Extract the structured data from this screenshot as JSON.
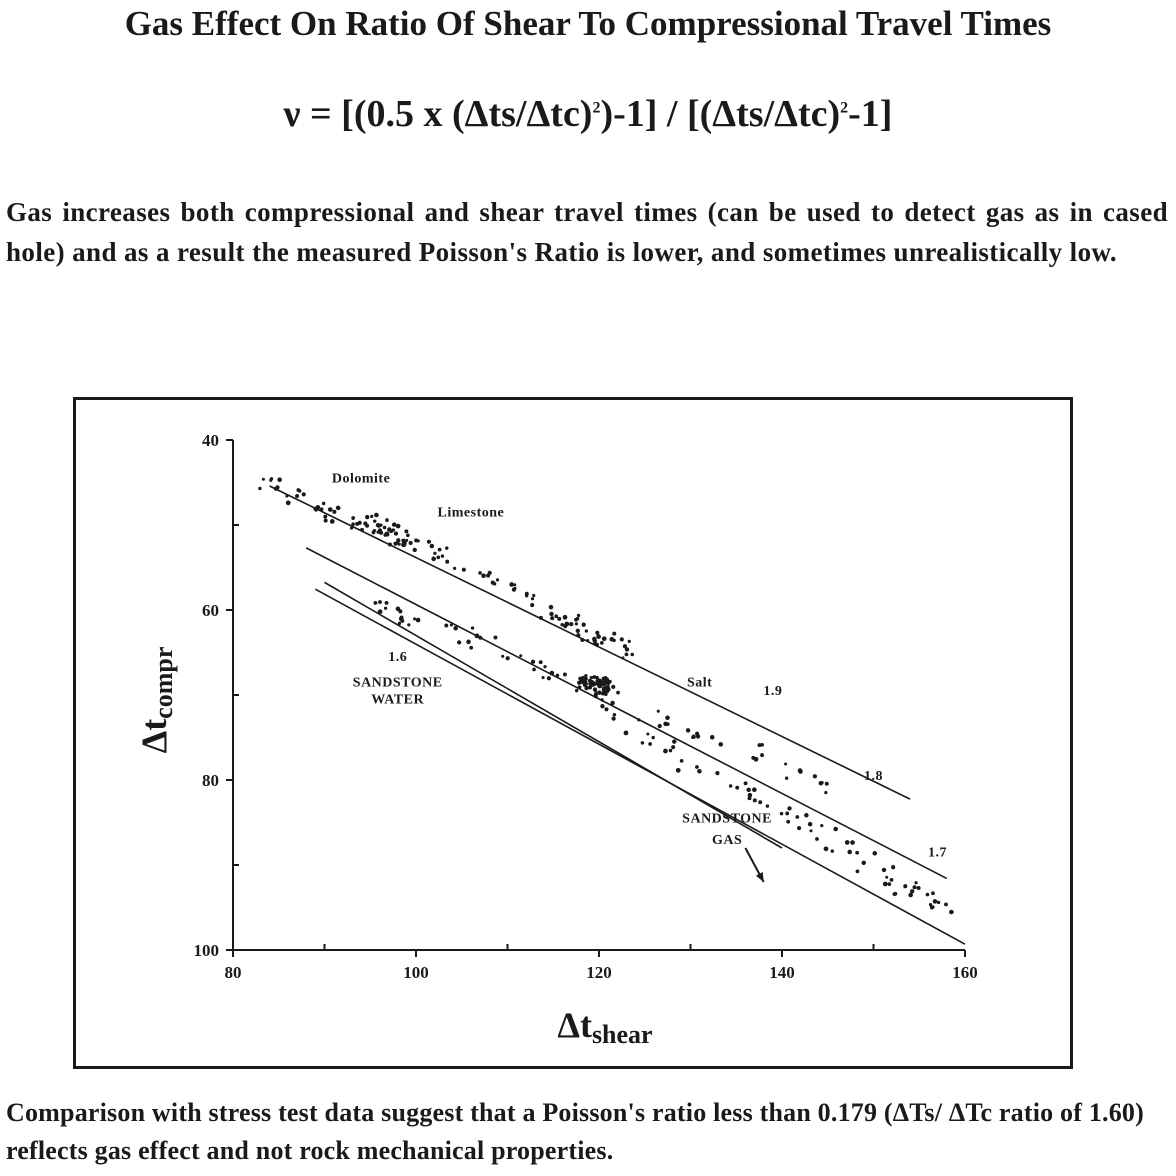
{
  "title": "Gas Effect On Ratio Of Shear To Compressional Travel Times",
  "formula": {
    "part1": "ν = [(0.5 x (Δts/Δtc)",
    "exp1": "2",
    "part2": ")-1] / [(Δts/Δtc)",
    "exp2": "2",
    "part3": "-1]"
  },
  "intro_text": "Gas increases both compressional and shear travel times (can be used to detect gas as in cased hole) and as a result the measured Poisson's Ratio is lower, and sometimes unrealistically low.",
  "footer_text": "Comparison with stress test data suggest that a Poisson's ratio less than 0.179 (ΔTs/ ΔTc ratio of 1.60) reflects gas effect and not rock mechanical properties.",
  "chart_data": {
    "type": "scatter",
    "xlabel_main": "Δt",
    "xlabel_sub": "shear",
    "ylabel_main": "Δt",
    "ylabel_sub": "compr",
    "xlim": [
      80,
      160
    ],
    "ylim": [
      40,
      100
    ],
    "y_inverted": true,
    "x_ticks": [
      80,
      100,
      120,
      140,
      160
    ],
    "y_ticks": [
      40,
      60,
      80,
      100
    ],
    "x_minor_ticks": [
      90,
      110,
      130,
      150
    ],
    "y_minor_ticks": [
      50,
      70,
      90
    ],
    "ratio_lines": [
      {
        "label": "1.9",
        "ratio": 1.9,
        "x_range": [
          84,
          154
        ]
      },
      {
        "label": "1.8",
        "ratio": 1.8,
        "x_range": [
          88,
          158
        ]
      },
      {
        "label": "1.7",
        "ratio": 1.7,
        "x_range": [
          89,
          160
        ]
      },
      {
        "label": "1.6",
        "ratio": 1.6,
        "x_range": [
          90,
          140
        ]
      }
    ],
    "clusters": [
      {
        "name": "Dolomite",
        "points": [
          [
            83,
            45
          ],
          [
            86,
            46
          ],
          [
            89,
            48
          ],
          [
            92,
            49
          ],
          [
            95,
            50
          ],
          [
            97,
            51
          ],
          [
            99,
            52
          ]
        ]
      },
      {
        "name": "Limestone",
        "points": [
          [
            100,
            52
          ],
          [
            104,
            54
          ],
          [
            108,
            56
          ],
          [
            112,
            58
          ],
          [
            116,
            61
          ],
          [
            120,
            63
          ],
          [
            124,
            65
          ]
        ]
      },
      {
        "name": "Salt",
        "points": [
          [
            118,
            68
          ],
          [
            119,
            69
          ],
          [
            120,
            68
          ],
          [
            121,
            69
          ],
          [
            120,
            70
          ]
        ]
      },
      {
        "name": "SANDSTONE WATER",
        "points": [
          [
            96,
            60
          ],
          [
            102,
            62
          ],
          [
            108,
            64
          ],
          [
            114,
            67
          ],
          [
            120,
            70
          ],
          [
            130,
            74
          ],
          [
            138,
            77
          ],
          [
            146,
            81
          ]
        ]
      },
      {
        "name": "SANDSTONE GAS",
        "points": [
          [
            120,
            72
          ],
          [
            128,
            77
          ],
          [
            136,
            81
          ],
          [
            142,
            85
          ],
          [
            148,
            89
          ],
          [
            154,
            93
          ],
          [
            158,
            95
          ]
        ]
      }
    ],
    "annotations": [
      {
        "text": "Dolomite",
        "x": 94,
        "y": 45
      },
      {
        "text": "Limestone",
        "x": 106,
        "y": 49
      },
      {
        "text": "Salt",
        "x": 131,
        "y": 69
      },
      {
        "text": "1.9",
        "x": 139,
        "y": 70
      },
      {
        "text": "1.8",
        "x": 150,
        "y": 80
      },
      {
        "text": "1.7",
        "x": 157,
        "y": 89
      },
      {
        "text": "1.6",
        "x": 98,
        "y": 66
      },
      {
        "text": "SANDSTONE",
        "x": 98,
        "y": 69
      },
      {
        "text": "WATER",
        "x": 98,
        "y": 71
      },
      {
        "text": "SANDSTONE",
        "x": 134,
        "y": 85
      },
      {
        "text": "GAS",
        "x": 134,
        "y": 87.5
      }
    ],
    "arrow": {
      "from": [
        136,
        88
      ],
      "to": [
        138,
        92
      ]
    }
  }
}
